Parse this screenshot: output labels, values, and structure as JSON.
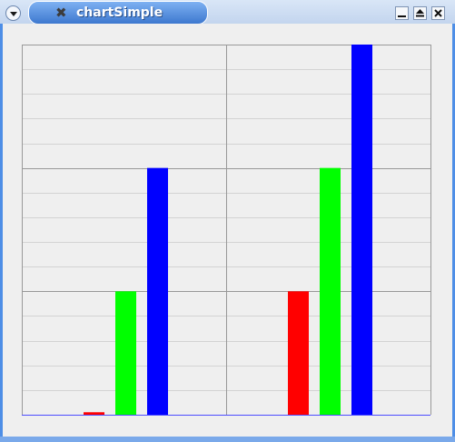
{
  "window": {
    "title": "chartSimple",
    "icons": {
      "menu": "chevron-down-icon",
      "app": "app-icon",
      "minimize": "minimize-icon",
      "maximize": "maximize-icon",
      "close": "close-icon"
    },
    "app_icon_glyph": "✖"
  },
  "chart_data": {
    "type": "bar",
    "categories": [
      "",
      ""
    ],
    "series": [
      {
        "color": "#ff0000",
        "values": [
          0.02,
          1
        ]
      },
      {
        "color": "#00ff00",
        "values": [
          1,
          2
        ]
      },
      {
        "color": "#0000ff",
        "values": [
          2,
          3
        ]
      }
    ],
    "ylim": [
      0,
      3
    ],
    "grid": true,
    "major_y_lines": 3,
    "minor_per_major": 5,
    "x_divisions": 2,
    "background": "#efefef",
    "major_grid_color": "#999999",
    "minor_grid_color": "#d3d3d3"
  }
}
